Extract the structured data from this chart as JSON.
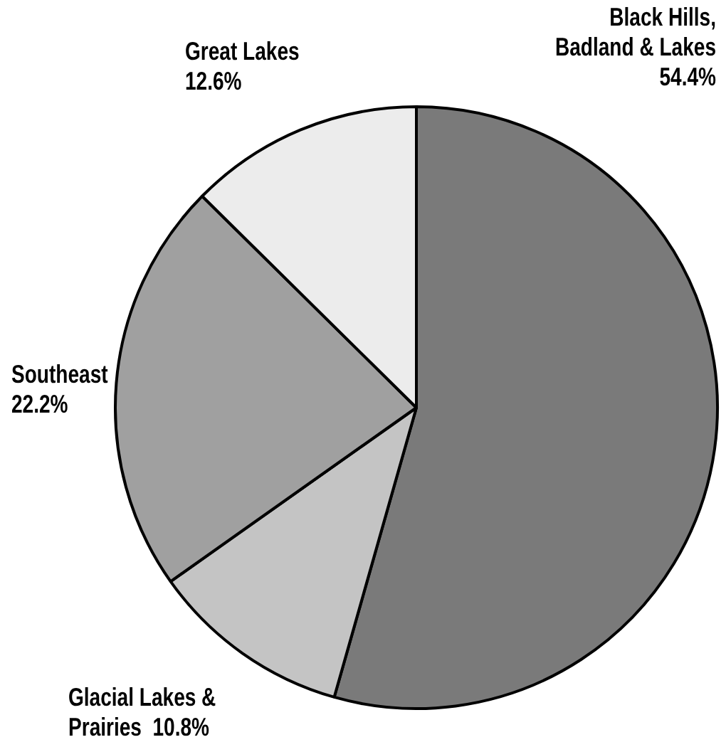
{
  "chart_data": {
    "type": "pie",
    "categories": [
      "Black Hills, Badland & Lakes",
      "Glacial Lakes & Prairies",
      "Southeast",
      "Great Lakes"
    ],
    "values": [
      54.4,
      10.8,
      22.2,
      12.6
    ],
    "colors": [
      "#7a7a7a",
      "#c4c4c4",
      "#a0a0a0",
      "#ececec"
    ],
    "value_labels": [
      "54.4%",
      "10.8%",
      "22.2%",
      "12.6%"
    ],
    "legend": false
  }
}
